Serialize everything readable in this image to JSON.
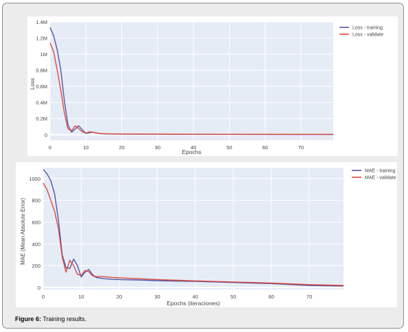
{
  "figure": {
    "caption_label": "Figure 6:",
    "caption_text": "Training results."
  },
  "colors": {
    "training": "#4c57a3",
    "validate": "#e0463b",
    "plot_bg": "#e5ecf6",
    "grid": "#ffffff"
  },
  "chart_data": [
    {
      "type": "line",
      "title": "",
      "xlabel": "Epochs",
      "ylabel": "Loss",
      "xlim": [
        0,
        79
      ],
      "ylim": [
        -70000,
        1400000
      ],
      "xticks": [
        0,
        10,
        20,
        30,
        40,
        50,
        60,
        70
      ],
      "xtick_labels": [
        "0",
        "10",
        "20",
        "30",
        "40",
        "50",
        "60",
        "70"
      ],
      "yticks": [
        0,
        200000,
        400000,
        600000,
        800000,
        1000000,
        1200000,
        1400000
      ],
      "ytick_labels": [
        "0",
        "0.2M",
        "0.4M",
        "0.6M",
        "0.8M",
        "1M",
        "1.2M",
        "1.4M"
      ],
      "grid": true,
      "legend": "top-right",
      "series": [
        {
          "name": "Loss - training",
          "color": "#4c57a3",
          "x": [
            0,
            1,
            2,
            3,
            4,
            5,
            6,
            7,
            8,
            9,
            10,
            11,
            12,
            13,
            14,
            15,
            16,
            18,
            20,
            25,
            30,
            40,
            50,
            60,
            70,
            79
          ],
          "y": [
            1330000,
            1230000,
            1050000,
            800000,
            420000,
            120000,
            30000,
            70000,
            110000,
            60000,
            15000,
            25000,
            30000,
            22000,
            12000,
            10000,
            9000,
            8000,
            7500,
            6500,
            6000,
            5000,
            4000,
            3000,
            2500,
            2000
          ]
        },
        {
          "name": "Loss - validate",
          "color": "#e0463b",
          "x": [
            0,
            1,
            2,
            3,
            4,
            5,
            6,
            7,
            8,
            9,
            10,
            11,
            12,
            13,
            14,
            15,
            16,
            18,
            20,
            25,
            30,
            40,
            50,
            60,
            70,
            79
          ],
          "y": [
            1140000,
            1030000,
            800000,
            550000,
            270000,
            70000,
            50000,
            110000,
            75000,
            35000,
            20000,
            35000,
            30000,
            20000,
            15000,
            12000,
            11000,
            10000,
            9000,
            8000,
            7000,
            6000,
            5000,
            4500,
            4000,
            3500
          ]
        }
      ]
    },
    {
      "type": "line",
      "title": "",
      "xlabel": "Epochs (iteraciones)",
      "ylabel": "MAE (Mean Absolute Error)",
      "xlim": [
        0,
        79
      ],
      "ylim": [
        -20,
        1100
      ],
      "xticks": [
        0,
        10,
        20,
        30,
        40,
        50,
        60,
        70
      ],
      "xtick_labels": [
        "0",
        "10",
        "20",
        "30",
        "40",
        "50",
        "60",
        "70"
      ],
      "yticks": [
        0,
        200,
        400,
        600,
        800,
        1000
      ],
      "ytick_labels": [
        "0",
        "200",
        "400",
        "600",
        "800",
        "1000"
      ],
      "grid": true,
      "legend": "top-right",
      "series": [
        {
          "name": "MAE - training",
          "color": "#4c57a3",
          "x": [
            0,
            1,
            2,
            3,
            4,
            5,
            6,
            7,
            8,
            9,
            10,
            11,
            12,
            13,
            14,
            15,
            16,
            18,
            20,
            25,
            30,
            40,
            50,
            60,
            70,
            79
          ],
          "y": [
            1085,
            1045,
            980,
            860,
            620,
            300,
            180,
            175,
            260,
            200,
            95,
            140,
            165,
            115,
            90,
            85,
            80,
            75,
            72,
            68,
            62,
            55,
            45,
            35,
            18,
            12
          ]
        },
        {
          "name": "MAE - validate",
          "color": "#e0463b",
          "x": [
            0,
            1,
            2,
            3,
            4,
            5,
            6,
            7,
            8,
            9,
            10,
            11,
            12,
            13,
            14,
            15,
            16,
            18,
            20,
            25,
            30,
            40,
            50,
            60,
            70,
            79
          ],
          "y": [
            960,
            900,
            800,
            700,
            540,
            280,
            140,
            250,
            200,
            120,
            110,
            155,
            145,
            105,
            100,
            100,
            98,
            92,
            88,
            80,
            72,
            60,
            50,
            40,
            25,
            18
          ]
        }
      ]
    }
  ]
}
